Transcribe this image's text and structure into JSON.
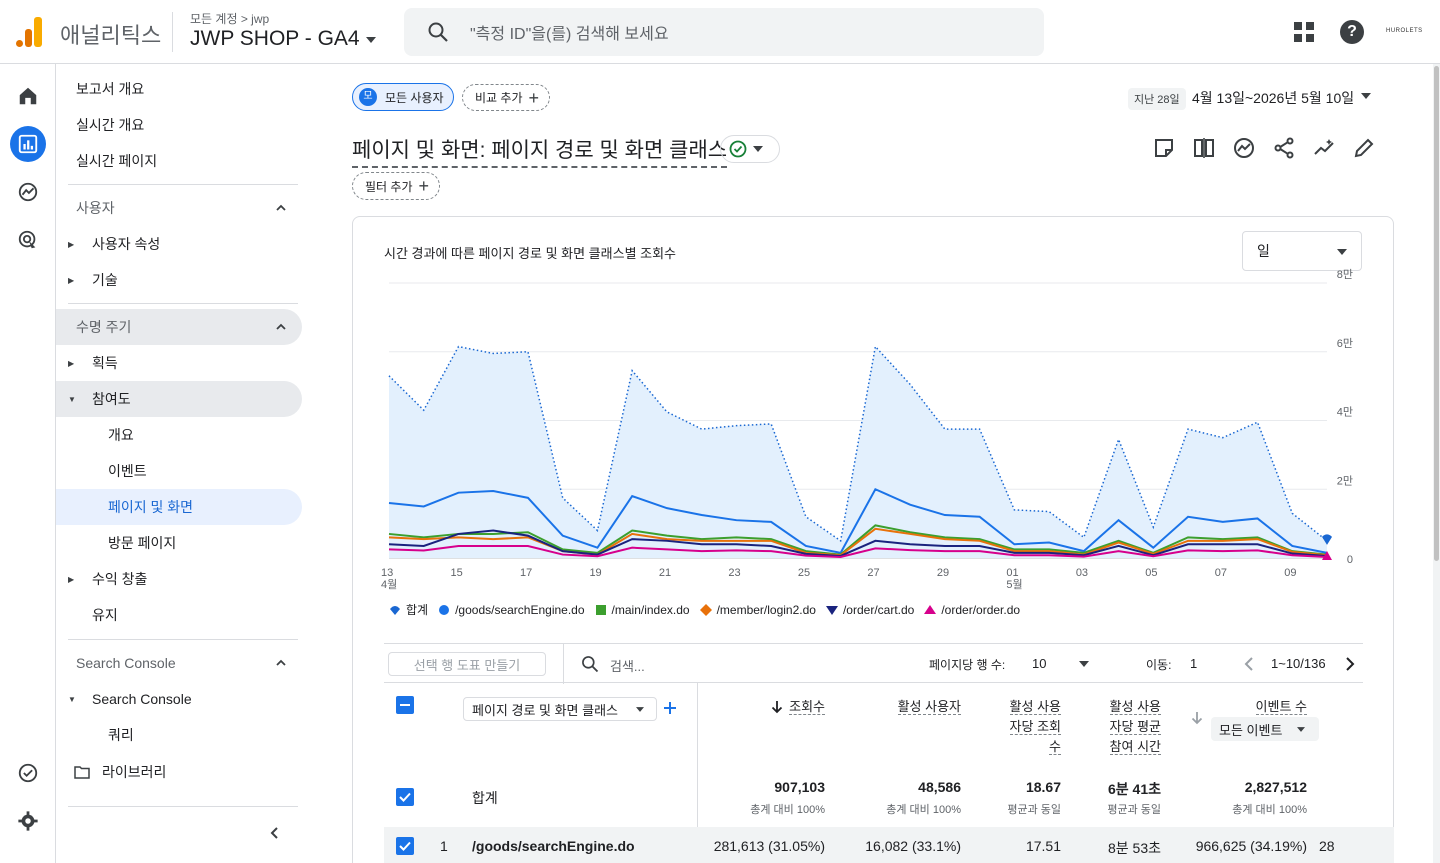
{
  "app": {
    "name": "애널리틱스",
    "breadcrumb": "모든 계정 > jwp",
    "property": "JWP SHOP - GA4",
    "brand": "HUROLETS"
  },
  "search": {
    "placeholder": "\"측정 ID\"을(를) 검색해 보세요"
  },
  "icons": {
    "search": "search-icon",
    "apps": "apps-grid-icon",
    "help": "help-icon"
  },
  "rail": [
    "home-icon",
    "reports-icon",
    "explore-icon",
    "advertising-icon",
    "admin-check-icon",
    "settings-icon"
  ],
  "nav": {
    "report_overview": "보고서 개요",
    "realtime_overview": "실시간 개요",
    "realtime_pages": "실시간 페이지",
    "user_section": "사용자",
    "user_attributes": "사용자 속성",
    "tech": "기술",
    "lifecycle_section": "수명 주기",
    "acquisition": "획득",
    "engagement": "참여도",
    "engagement_overview": "개요",
    "events": "이벤트",
    "pages_screens": "페이지 및 화면",
    "landing_page": "방문 페이지",
    "monetization": "수익 창출",
    "retention": "유지",
    "search_console_section": "Search Console",
    "search_console": "Search Console",
    "queries": "쿼리",
    "library": "라이브러리"
  },
  "toolbar": {
    "segment_avatar": "모",
    "segment": "모든 사용자",
    "compare": "비교 추가",
    "date_label": "지난 28일",
    "date_range": "4월 13일~2026년 5월 10일",
    "title": "페이지 및 화면: 페이지 경로 및 화면 클래스",
    "filter": "필터 추가"
  },
  "card": {
    "title": "시간 경과에 따른 페이지 경로 및 화면 클래스별 조회수",
    "granularity": "일"
  },
  "chart_data": {
    "type": "line",
    "title": "시간 경과에 따른 페이지 경로 및 화면 클래스별 조회수",
    "x": [
      "13",
      "14",
      "15",
      "16",
      "17",
      "18",
      "19",
      "20",
      "21",
      "22",
      "23",
      "24",
      "25",
      "26",
      "27",
      "28",
      "29",
      "30",
      "01",
      "02",
      "03",
      "04",
      "05",
      "06",
      "07",
      "08",
      "09",
      "10"
    ],
    "x_tick_labels": [
      "13\n4월",
      "15",
      "17",
      "19",
      "21",
      "23",
      "25",
      "27",
      "29",
      "01\n5월",
      "03",
      "05",
      "07",
      "09"
    ],
    "y_ticks": [
      "0",
      "2만",
      "4만",
      "6만",
      "8만"
    ],
    "ylim": [
      0,
      80000
    ],
    "grid": true,
    "legend_position": "bottom",
    "series": [
      {
        "name": "합계",
        "color": "#1967d2",
        "style": "dotted-area",
        "values": [
          53000,
          43000,
          61500,
          59500,
          60000,
          17500,
          8000,
          54500,
          42500,
          37500,
          38500,
          39000,
          12000,
          5000,
          61500,
          50500,
          37500,
          37500,
          14000,
          13500,
          6000,
          34500,
          9000,
          37500,
          35000,
          39500,
          13000,
          5000
        ]
      },
      {
        "name": "/goods/searchEngine.do",
        "color": "#1a73e8",
        "values": [
          16000,
          15000,
          19000,
          19500,
          17500,
          6500,
          3000,
          18000,
          14500,
          12500,
          11000,
          10500,
          3500,
          1500,
          20000,
          15500,
          12500,
          12000,
          4000,
          4500,
          2000,
          11000,
          3000,
          12000,
          10500,
          11500,
          3500,
          1500
        ]
      },
      {
        "name": "/main/index.do",
        "color": "#3c9f2e",
        "values": [
          7000,
          6000,
          7000,
          7000,
          7500,
          2500,
          1500,
          8000,
          6500,
          5500,
          6000,
          5500,
          2000,
          1000,
          9500,
          7500,
          6000,
          5500,
          2500,
          2500,
          1500,
          5000,
          1500,
          6000,
          5500,
          6000,
          2000,
          1000
        ]
      },
      {
        "name": "/member/login2.do",
        "color": "#e8710a",
        "values": [
          6000,
          5500,
          6000,
          5500,
          6000,
          2000,
          1000,
          7000,
          5500,
          5000,
          5000,
          5000,
          1500,
          800,
          8500,
          7000,
          5500,
          5000,
          2000,
          2000,
          1000,
          4500,
          1200,
          5000,
          5000,
          5500,
          1800,
          800
        ]
      },
      {
        "name": "/order/cart.do",
        "color": "#1a237e",
        "values": [
          4000,
          3500,
          7000,
          8000,
          6500,
          2000,
          1000,
          5500,
          5000,
          4000,
          4000,
          3500,
          1200,
          600,
          5000,
          4000,
          3500,
          3500,
          1500,
          1500,
          800,
          3500,
          800,
          4000,
          4000,
          4000,
          1300,
          600
        ]
      },
      {
        "name": "/order/order.do",
        "color": "#d6008c",
        "values": [
          2500,
          2200,
          3500,
          3500,
          3500,
          1000,
          500,
          3000,
          2500,
          2000,
          2200,
          2000,
          700,
          300,
          2800,
          2300,
          2000,
          2000,
          800,
          800,
          400,
          2000,
          500,
          2200,
          2000,
          2200,
          800,
          300
        ]
      }
    ]
  },
  "table": {
    "make_chart": "선택 행 도표 만들기",
    "search_placeholder": "검색...",
    "rows_per_page_label": "페이지당 행 수:",
    "rows_per_page": "10",
    "goto_label": "이동:",
    "goto_value": "1",
    "range": "1~10/136",
    "dimension": "페이지 경로 및 화면 클래스",
    "col_views": "조회수",
    "col_active_users": "활성 사용자",
    "col_views_per_user_1": "활성 사용",
    "col_views_per_user_2": "자당 조회",
    "col_views_per_user_3": "수",
    "col_avg_time_1": "활성 사용",
    "col_avg_time_2": "자당 평균",
    "col_avg_time_3": "참여 시간",
    "col_events": "이벤트 수",
    "events_filter": "모든 이벤트",
    "total_label": "합계",
    "totals": {
      "views": "907,103",
      "active_users": "48,586",
      "views_per_user": "18.67",
      "avg_time": "6분 41초",
      "events": "2,827,512"
    },
    "totals_sub": {
      "views": "총계 대비 100%",
      "active_users": "총계 대비 100%",
      "views_per_user": "평균과 동일",
      "avg_time": "평균과 동일",
      "events": "총계 대비 100%"
    },
    "row1": {
      "rank": "1",
      "page": "/goods/searchEngine.do",
      "views": "281,613 (31.05%)",
      "active_users": "16,082 (33.1%)",
      "views_per_user": "17.51",
      "avg_time": "8분 53초",
      "events": "966,625 (34.19%)",
      "cut": "28"
    }
  }
}
